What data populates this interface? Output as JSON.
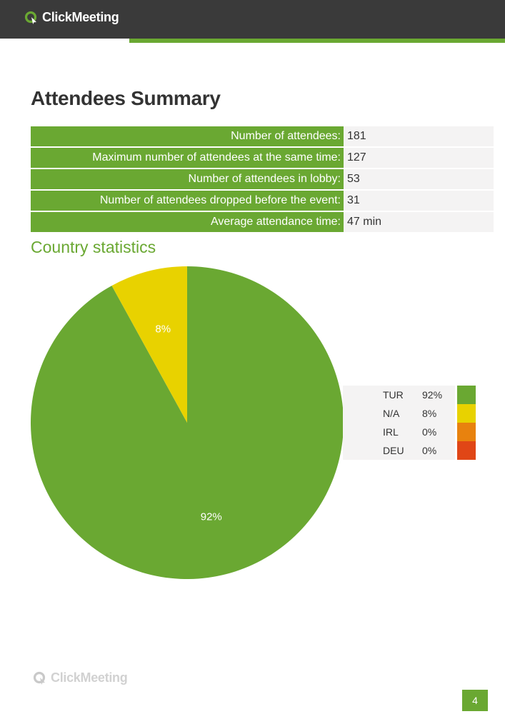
{
  "brand": {
    "name": "ClickMeeting",
    "accent": "#6aa832",
    "header_bg": "#3a3a3a"
  },
  "page_title": "Attendees Summary",
  "summary": [
    {
      "label": "Number of attendees:",
      "value": "181"
    },
    {
      "label": "Maximum number of attendees at the same time:",
      "value": "127"
    },
    {
      "label": "Number of attendees in lobby:",
      "value": "53"
    },
    {
      "label": "Number of attendees dropped before the event:",
      "value": "31"
    },
    {
      "label": "Average attendance time:",
      "value": "47 min"
    }
  ],
  "section_title": "Country statistics",
  "chart_data": {
    "type": "pie",
    "title": "",
    "categories": [
      "TUR",
      "N/A",
      "IRL",
      "DEU"
    ],
    "values": [
      92,
      8,
      0,
      0
    ],
    "value_labels": [
      "92%",
      "8%",
      "0%",
      "0%"
    ],
    "colors": [
      "#6aa832",
      "#e8d200",
      "#e8820e",
      "#e04616"
    ],
    "legend_position": "right"
  },
  "footer": {
    "logo_text": "ClickMeeting",
    "page_number": "4"
  }
}
